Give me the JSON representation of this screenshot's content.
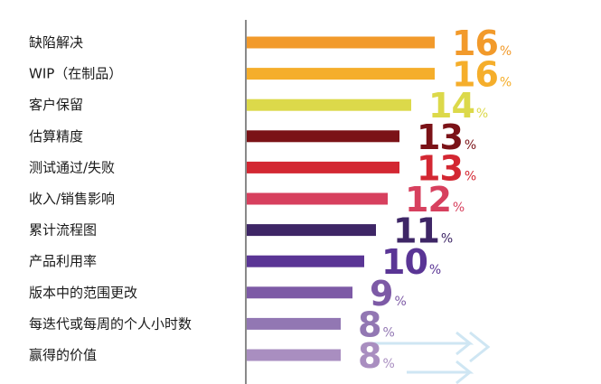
{
  "chart_data": {
    "type": "bar",
    "orientation": "horizontal",
    "title": "",
    "xlabel": "",
    "ylabel": "",
    "unit": "%",
    "xlim": [
      0,
      16
    ],
    "grid": false,
    "legend": "none",
    "categories": [
      "缺陷解决",
      "WIP（在制品）",
      "客户保留",
      "估算精度",
      "测试通过/失败",
      "收入/销售影响",
      "累计流程图",
      "产品利用率",
      "版本中的范围更改",
      "每迭代或每周的个人小时数",
      "赢得的价值"
    ],
    "values": [
      16,
      16,
      14,
      13,
      13,
      12,
      11,
      10,
      9,
      8,
      8
    ],
    "colors": [
      "#F29A2B",
      "#F5AE2B",
      "#DCD94A",
      "#7B1217",
      "#D32732",
      "#D7405E",
      "#3E2666",
      "#5A3595",
      "#7D5AA6",
      "#9277B3",
      "#A98EC0"
    ],
    "axis_color": "#8a8a8a",
    "decor_color": "#cfe6f3"
  }
}
